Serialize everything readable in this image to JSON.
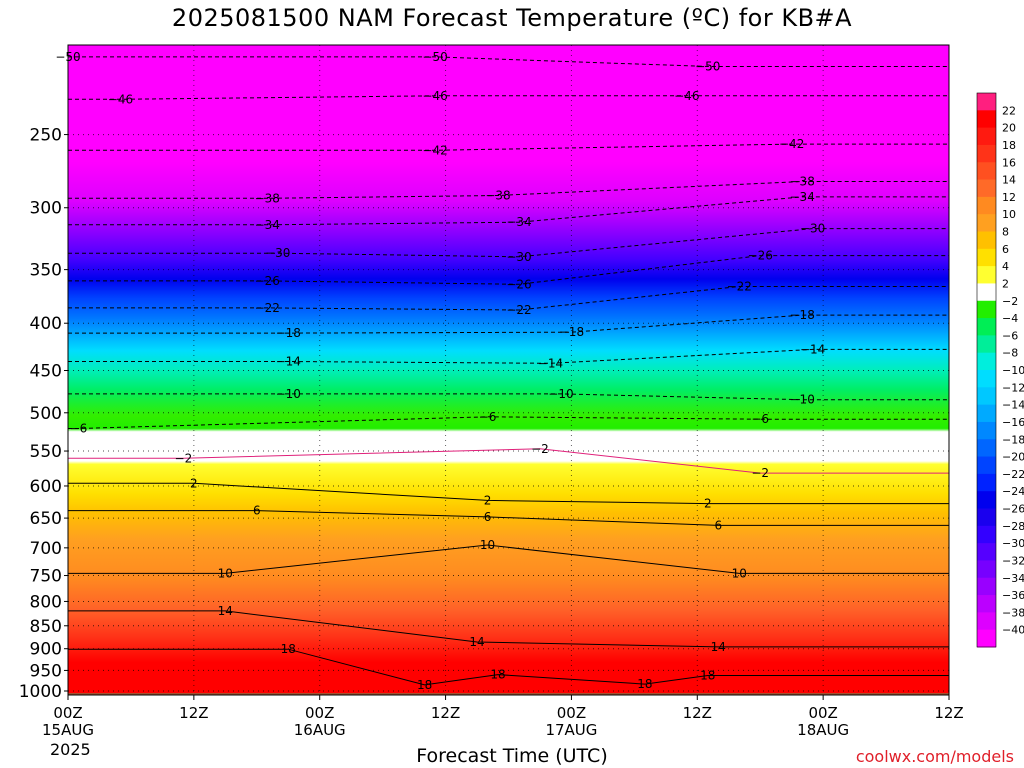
{
  "title": "2025081500 NAM Forecast Temperature (ºC) for KB#A",
  "xlabel": "Forecast Time (UTC)",
  "credit": "coolwx.com/models",
  "year": "2025",
  "chart_data": {
    "type": "heatmap",
    "title": "2025081500 NAM Forecast Temperature (ºC) for KB#A",
    "xlabel": "Forecast Time (UTC)",
    "ylabel": "",
    "x_ticks": [
      {
        "hour": 0,
        "label": "00Z",
        "sub": "15AUG"
      },
      {
        "hour": 12,
        "label": "12Z",
        "sub": ""
      },
      {
        "hour": 24,
        "label": "00Z",
        "sub": "16AUG"
      },
      {
        "hour": 36,
        "label": "12Z",
        "sub": ""
      },
      {
        "hour": 48,
        "label": "00Z",
        "sub": "17AUG"
      },
      {
        "hour": 60,
        "label": "12Z",
        "sub": ""
      },
      {
        "hour": 72,
        "label": "00Z",
        "sub": "18AUG"
      },
      {
        "hour": 84,
        "label": "12Z",
        "sub": ""
      }
    ],
    "xlim": [
      0,
      84
    ],
    "y_ticks": [
      250,
      300,
      350,
      400,
      450,
      500,
      550,
      600,
      650,
      700,
      750,
      800,
      850,
      900,
      950,
      1000
    ],
    "ylim": [
      1010,
      200
    ],
    "y_scale": "log-pressure (hPa)",
    "contour_labels": [
      {
        "t": 0,
        "p": 206,
        "v": "-50"
      },
      {
        "t": 35,
        "p": 206,
        "v": "-50"
      },
      {
        "t": 61,
        "p": 211,
        "v": "-50"
      },
      {
        "t": 5,
        "p": 229,
        "v": "-46"
      },
      {
        "t": 35,
        "p": 227,
        "v": "-46"
      },
      {
        "t": 59,
        "p": 227,
        "v": "-46"
      },
      {
        "t": 35,
        "p": 260,
        "v": "-42"
      },
      {
        "t": 69,
        "p": 256,
        "v": "-42"
      },
      {
        "t": 70,
        "p": 281,
        "v": "-38"
      },
      {
        "t": 19,
        "p": 293,
        "v": "-38"
      },
      {
        "t": 41,
        "p": 291,
        "v": "-38"
      },
      {
        "t": 70,
        "p": 292,
        "v": "-34"
      },
      {
        "t": 19,
        "p": 313,
        "v": "-34"
      },
      {
        "t": 43,
        "p": 311,
        "v": "-34"
      },
      {
        "t": 71,
        "p": 316,
        "v": "-30"
      },
      {
        "t": 20,
        "p": 336,
        "v": "-30"
      },
      {
        "t": 43,
        "p": 339,
        "v": "-30"
      },
      {
        "t": 66,
        "p": 338,
        "v": "-26"
      },
      {
        "t": 19,
        "p": 360,
        "v": "-26"
      },
      {
        "t": 43,
        "p": 363,
        "v": "-26"
      },
      {
        "t": 64,
        "p": 365,
        "v": "-22"
      },
      {
        "t": 19,
        "p": 385,
        "v": "-22"
      },
      {
        "t": 43,
        "p": 387,
        "v": "-22"
      },
      {
        "t": 70,
        "p": 392,
        "v": "-18"
      },
      {
        "t": 21,
        "p": 410,
        "v": "-18"
      },
      {
        "t": 48,
        "p": 409,
        "v": "-18"
      },
      {
        "t": 71,
        "p": 427,
        "v": "-14"
      },
      {
        "t": 21,
        "p": 440,
        "v": "-14"
      },
      {
        "t": 46,
        "p": 442,
        "v": "-14"
      },
      {
        "t": 21,
        "p": 477,
        "v": "-10"
      },
      {
        "t": 47,
        "p": 477,
        "v": "-10"
      },
      {
        "t": 70,
        "p": 484,
        "v": "-10"
      },
      {
        "t": 1,
        "p": 520,
        "v": "-6"
      },
      {
        "t": 40,
        "p": 505,
        "v": "-6"
      },
      {
        "t": 66,
        "p": 508,
        "v": "-6"
      },
      {
        "t": 11,
        "p": 560,
        "v": "-2"
      },
      {
        "t": 45,
        "p": 547,
        "v": "-2"
      },
      {
        "t": 66,
        "p": 581,
        "v": "-2"
      },
      {
        "t": 12,
        "p": 596,
        "v": "2"
      },
      {
        "t": 40,
        "p": 622,
        "v": "2"
      },
      {
        "t": 61,
        "p": 627,
        "v": "2"
      },
      {
        "t": 18,
        "p": 638,
        "v": "6"
      },
      {
        "t": 40,
        "p": 648,
        "v": "6"
      },
      {
        "t": 62,
        "p": 662,
        "v": "6"
      },
      {
        "t": 15,
        "p": 746,
        "v": "10"
      },
      {
        "t": 40,
        "p": 695,
        "v": "10"
      },
      {
        "t": 64,
        "p": 746,
        "v": "10"
      },
      {
        "t": 15,
        "p": 819,
        "v": "14"
      },
      {
        "t": 39,
        "p": 885,
        "v": "14"
      },
      {
        "t": 62,
        "p": 896,
        "v": "14"
      },
      {
        "t": 21,
        "p": 901,
        "v": "18"
      },
      {
        "t": 41,
        "p": 960,
        "v": "18"
      },
      {
        "t": 34,
        "p": 985,
        "v": "18"
      },
      {
        "t": 55,
        "p": 983,
        "v": "18"
      },
      {
        "t": 61,
        "p": 962,
        "v": "18"
      }
    ],
    "colorbar": {
      "levels": [
        22,
        20,
        18,
        16,
        14,
        12,
        10,
        8,
        6,
        4,
        2,
        -2,
        -4,
        -6,
        -8,
        -10,
        -12,
        -14,
        -16,
        -18,
        -20,
        -22,
        -24,
        -26,
        -28,
        -30,
        -32,
        -34,
        -36,
        -38,
        -40
      ],
      "colors": [
        "#ff1f7f",
        "#ff0000",
        "#ff1a10",
        "#ff3318",
        "#ff5020",
        "#ff6a28",
        "#ff8a20",
        "#ffa020",
        "#ffc000",
        "#ffe000",
        "#ffff30",
        "#ffffff",
        "#22ee00",
        "#00ee55",
        "#00ee99",
        "#00eedd",
        "#00ddff",
        "#00c8ff",
        "#00aaff",
        "#0088ff",
        "#0066ff",
        "#0044ff",
        "#0022ff",
        "#0000ee",
        "#1a00ee",
        "#3300ff",
        "#5500ff",
        "#7700ff",
        "#9900ff",
        "#bb00ff",
        "#dd00ff",
        "#ff00ff"
      ]
    },
    "ground_color": "#a05030",
    "freezing_line_color": "#e0207a",
    "grid": true
  }
}
